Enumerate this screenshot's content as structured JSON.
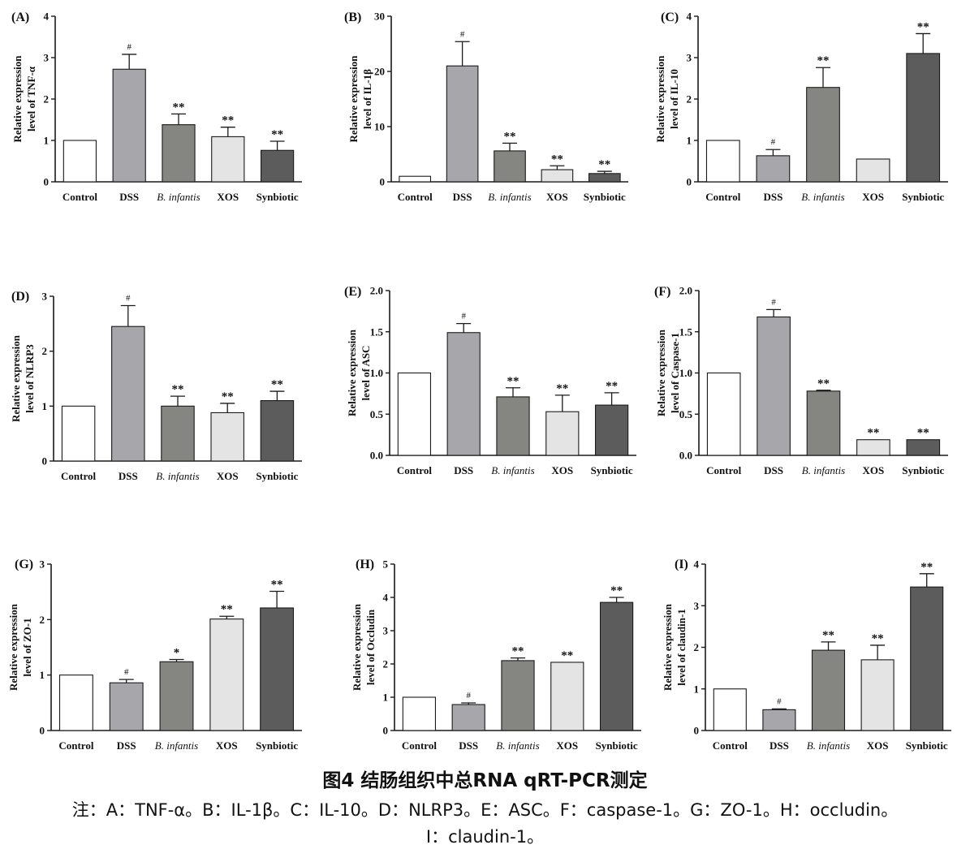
{
  "chart_data": [
    {
      "type": "bar",
      "panel": "(A)",
      "ylabel_lines": [
        "Relative expression",
        "level of  TNF-α"
      ],
      "ylim": [
        0,
        4
      ],
      "yticks": [
        "0",
        "1",
        "2",
        "3",
        "4"
      ],
      "categories": [
        "Control",
        "DSS",
        "B. infantis",
        "XOS",
        "Synbiotic"
      ],
      "values": [
        1.0,
        2.72,
        1.38,
        1.09,
        0.76
      ],
      "errors": [
        0,
        0.36,
        0.26,
        0.23,
        0.22
      ],
      "labels": [
        "",
        "#",
        "**",
        "**",
        "**"
      ]
    },
    {
      "type": "bar",
      "panel": "(B)",
      "ylabel_lines": [
        "Relative expression",
        "level of  IL-1β"
      ],
      "ylim": [
        0,
        30
      ],
      "yticks": [
        "0",
        "10",
        "20",
        "30"
      ],
      "categories": [
        "Control",
        "DSS",
        "B. infantis",
        "XOS",
        "Synbiotic"
      ],
      "values": [
        1.0,
        21.0,
        5.6,
        2.2,
        1.5
      ],
      "errors": [
        0,
        4.4,
        1.4,
        0.7,
        0.4
      ],
      "labels": [
        "",
        "#",
        "**",
        "**",
        "**"
      ]
    },
    {
      "type": "bar",
      "panel": "(C)",
      "ylabel_lines": [
        "Relative expression",
        "level of  IL-10"
      ],
      "ylim": [
        0,
        4
      ],
      "yticks": [
        "0",
        "1",
        "2",
        "3",
        "4"
      ],
      "categories": [
        "Control",
        "DSS",
        "B. infantis",
        "XOS",
        "Synbiotic"
      ],
      "values": [
        1.0,
        0.63,
        2.28,
        0.55,
        3.1
      ],
      "errors": [
        0,
        0.15,
        0.48,
        0.0,
        0.48
      ],
      "labels": [
        "",
        "#",
        "**",
        "",
        "**"
      ]
    },
    {
      "type": "bar",
      "panel": "(D)",
      "ylabel_lines": [
        "Relative expression",
        "level of  NLRP3"
      ],
      "ylim": [
        0,
        3
      ],
      "yticks": [
        "0",
        "1",
        "2",
        "3"
      ],
      "categories": [
        "Control",
        "DSS",
        "B. infantis",
        "XOS",
        "Synbiotic"
      ],
      "values": [
        1.0,
        2.45,
        1.0,
        0.88,
        1.1
      ],
      "errors": [
        0,
        0.38,
        0.18,
        0.17,
        0.17
      ],
      "labels": [
        "",
        "#",
        "**",
        "**",
        "**"
      ]
    },
    {
      "type": "bar",
      "panel": "(E)",
      "ylabel_lines": [
        "Relative expression",
        "level of  ASC"
      ],
      "ylim": [
        0,
        2.0
      ],
      "yticks": [
        "0.0",
        "0.5",
        "1.0",
        "1.5",
        "2.0"
      ],
      "categories": [
        "Control",
        "DSS",
        "B. infantis",
        "XOS",
        "Synbiotic"
      ],
      "values": [
        1.0,
        1.49,
        0.71,
        0.53,
        0.61
      ],
      "errors": [
        0,
        0.11,
        0.11,
        0.2,
        0.15
      ],
      "labels": [
        "",
        "#",
        "**",
        "**",
        "**"
      ]
    },
    {
      "type": "bar",
      "panel": "(F)",
      "ylabel_lines": [
        "Relative expression",
        "level of  Caspase-1"
      ],
      "ylim": [
        0,
        2.0
      ],
      "yticks": [
        "0.0",
        "0.5",
        "1.0",
        "1.5",
        "2.0"
      ],
      "categories": [
        "Control",
        "DSS",
        "B. infantis",
        "XOS",
        "Synbiotic"
      ],
      "values": [
        1.0,
        1.68,
        0.78,
        0.19,
        0.19
      ],
      "errors": [
        0,
        0.09,
        0.01,
        0.0,
        0.0
      ],
      "labels": [
        "",
        "#",
        "**",
        "**",
        "**"
      ]
    },
    {
      "type": "bar",
      "panel": "(G)",
      "ylabel_lines": [
        "Relative expression",
        "level of ZO-1"
      ],
      "ylim": [
        0,
        3
      ],
      "yticks": [
        "0",
        "1",
        "2",
        "3"
      ],
      "categories": [
        "Control",
        "DSS",
        "B. infantis",
        "XOS",
        "Synbiotic"
      ],
      "values": [
        1.0,
        0.86,
        1.24,
        2.01,
        2.21
      ],
      "errors": [
        0,
        0.06,
        0.04,
        0.05,
        0.3
      ],
      "labels": [
        "",
        "#",
        "*",
        "**",
        "**"
      ]
    },
    {
      "type": "bar",
      "panel": "(H)",
      "ylabel_lines": [
        "Relative expression",
        "level of  Occludin"
      ],
      "ylim": [
        0,
        5
      ],
      "yticks": [
        "0",
        "1",
        "2",
        "3",
        "4",
        "5"
      ],
      "categories": [
        "Control",
        "DSS",
        "B. infantis",
        "XOS",
        "Synbiotic"
      ],
      "values": [
        1.0,
        0.78,
        2.1,
        2.05,
        3.85
      ],
      "errors": [
        0,
        0.05,
        0.08,
        0.0,
        0.15
      ],
      "labels": [
        "",
        "#",
        "**",
        "**",
        "**"
      ]
    },
    {
      "type": "bar",
      "panel": "(I)",
      "ylabel_lines": [
        "Relative expression",
        "level of claudin-1"
      ],
      "ylim": [
        0,
        4
      ],
      "yticks": [
        "0",
        "1",
        "2",
        "3",
        "4"
      ],
      "categories": [
        "Control",
        "DSS",
        "B. infantis",
        "XOS",
        "Synbiotic"
      ],
      "values": [
        1.0,
        0.5,
        1.93,
        1.7,
        3.45
      ],
      "errors": [
        0,
        0.02,
        0.2,
        0.35,
        0.32
      ],
      "labels": [
        "",
        "#",
        "**",
        "**",
        "**"
      ]
    }
  ],
  "colors": {
    "bar_fills": [
      "#ffffff",
      "#a6a6ab",
      "#858582",
      "#e4e4e4",
      "#5c5c5c"
    ],
    "stroke": "#1a1a1a"
  },
  "caption": {
    "title": "图4 结肠组织中总RNA qRT-PCR测定",
    "note_line1": "注：A：TNF-α。B：IL-1β。C：IL-10。D：NLRP3。E：ASC。F：caspase-1。G：ZO-1。H：occludin。",
    "note_line2": "I：claudin-1。"
  }
}
